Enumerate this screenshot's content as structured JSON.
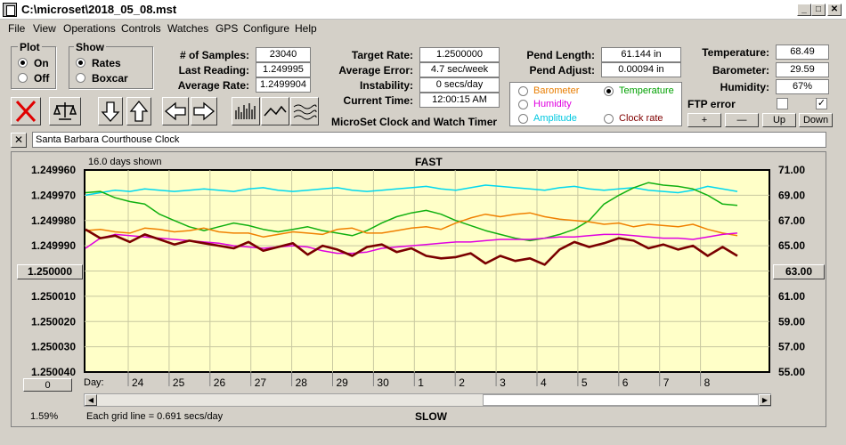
{
  "window": {
    "title": "C:\\microset\\2018_05_08.mst",
    "min": "_",
    "max": "□",
    "close": "✕"
  },
  "menu": [
    "File",
    "View",
    "Operations",
    "Controls",
    "Watches",
    "GPS",
    "Configure",
    "Help"
  ],
  "plot_group": {
    "title": "Plot",
    "on": "On",
    "off": "Off",
    "selected": "On"
  },
  "show_group": {
    "title": "Show",
    "rates": "Rates",
    "boxcar": "Boxcar",
    "selected": "Rates"
  },
  "stats": {
    "samples_label": "# of Samples:",
    "samples": "23040",
    "last_label": "Last Reading:",
    "last": "1.249995",
    "avg_rate_label": "Average Rate:",
    "avg_rate": "1.2499904",
    "target_label": "Target Rate:",
    "target": "1.2500000",
    "avg_err_label": "Average Error:",
    "avg_err": "4.7 sec/week",
    "instab_label": "Instability:",
    "instab": "0 secs/day",
    "time_label": "Current Time:",
    "time": "12:00:15 AM",
    "pend_len_label": "Pend Length:",
    "pend_len": "61.144 in",
    "pend_adj_label": "Pend Adjust:",
    "pend_adj": "0.00094 in",
    "temp_label": "Temperature:",
    "temp": "68.49",
    "baro_label": "Barometer:",
    "baro": "29.59",
    "hum_label": "Humidity:",
    "hum": "67%"
  },
  "app_name": "MicroSet Clock and Watch Timer",
  "legend_opts": {
    "barometer": {
      "label": "Barometer",
      "color": "#e87d00"
    },
    "temperature": {
      "label": "Temperature",
      "color": "#00a000",
      "selected": true
    },
    "humidity": {
      "label": "Humidity",
      "color": "#e000e0"
    },
    "amplitude": {
      "label": "Amplitude",
      "color": "#00c8e0"
    },
    "clock_rate": {
      "label": "Clock rate",
      "color": "#800000"
    }
  },
  "ftp": {
    "label": "FTP error",
    "color": "#e00000"
  },
  "adjust_buttons": {
    "plus": "+",
    "minus": "—",
    "up": "Up",
    "down": "Down"
  },
  "clock_name": "Santa Barbara Courthouse Clock",
  "close_x": "✕",
  "chart_data": {
    "type": "line",
    "title": "FAST",
    "bottom_label": "SLOW",
    "days_shown": "16.0 days shown",
    "grid_note": "Each grid line = 0.691 secs/day",
    "percent": "1.59%",
    "left_axis": {
      "ticks": [
        "1.249960",
        "1.249970",
        "1.249980",
        "1.249990",
        "1.250000",
        "1.250010",
        "1.250020",
        "1.250030",
        "1.250040"
      ],
      "center_button": "1.250000",
      "bottom_button": "0"
    },
    "right_axis": {
      "ticks": [
        "71.00",
        "69.00",
        "67.00",
        "65.00",
        "63.00",
        "61.00",
        "59.00",
        "57.00",
        "55.00"
      ],
      "center_button": "63.00"
    },
    "x_label": "Day:",
    "x_ticks": [
      "24",
      "25",
      "26",
      "27",
      "28",
      "29",
      "30",
      "1",
      "2",
      "3",
      "4",
      "5",
      "6",
      "7",
      "8"
    ],
    "grid": true,
    "series": [
      {
        "name": "Amplitude",
        "color": "#00d8f0",
        "values": [
          69.0,
          69.2,
          69.4,
          69.3,
          69.5,
          69.4,
          69.3,
          69.4,
          69.5,
          69.4,
          69.3,
          69.5,
          69.6,
          69.4,
          69.3,
          69.4,
          69.5,
          69.6,
          69.4,
          69.3,
          69.4,
          69.5,
          69.6,
          69.7,
          69.5,
          69.4,
          69.6,
          69.8,
          69.7,
          69.6,
          69.5,
          69.4,
          69.6,
          69.7,
          69.5,
          69.4,
          69.5,
          69.6,
          69.4,
          69.3,
          69.2,
          69.4,
          69.7,
          69.5,
          69.3
        ]
      },
      {
        "name": "Temperature",
        "color": "#10b010",
        "values": [
          69.2,
          69.3,
          68.8,
          68.5,
          68.3,
          67.5,
          67.0,
          66.5,
          66.2,
          66.5,
          66.8,
          66.6,
          66.3,
          66.1,
          66.3,
          66.5,
          66.2,
          66.0,
          65.8,
          66.2,
          66.8,
          67.3,
          67.6,
          67.8,
          67.5,
          67.0,
          66.6,
          66.2,
          65.9,
          65.6,
          65.4,
          65.6,
          65.9,
          66.3,
          67.0,
          68.3,
          69.0,
          69.6,
          70.0,
          69.8,
          69.7,
          69.5,
          69.0,
          68.3,
          68.2
        ]
      },
      {
        "name": "Barometer",
        "color": "#f08000",
        "values": [
          66.2,
          66.3,
          66.1,
          66.0,
          66.4,
          66.3,
          66.1,
          66.2,
          66.4,
          66.1,
          66.0,
          66.0,
          65.7,
          65.9,
          66.1,
          66.0,
          65.9,
          66.3,
          66.4,
          66.0,
          66.0,
          66.2,
          66.4,
          66.5,
          66.3,
          66.8,
          67.2,
          67.5,
          67.3,
          67.5,
          67.6,
          67.3,
          67.1,
          67.0,
          66.9,
          66.7,
          66.8,
          66.5,
          66.7,
          66.6,
          66.5,
          66.7,
          66.3,
          66.0,
          65.8
        ]
      },
      {
        "name": "Humidity",
        "color": "#e000e0",
        "values": [
          64.8,
          65.6,
          65.9,
          65.8,
          65.7,
          65.6,
          65.5,
          65.4,
          65.3,
          65.2,
          65.0,
          64.9,
          64.8,
          64.9,
          65.0,
          64.9,
          64.6,
          64.4,
          64.4,
          64.5,
          64.8,
          64.9,
          65.0,
          65.1,
          65.2,
          65.3,
          65.3,
          65.4,
          65.5,
          65.5,
          65.5,
          65.6,
          65.7,
          65.7,
          65.8,
          65.9,
          65.9,
          65.8,
          65.7,
          65.6,
          65.6,
          65.5,
          65.7,
          65.9,
          66.0
        ]
      },
      {
        "name": "Clock rate",
        "color": "#7a0000",
        "values": [
          66.3,
          65.6,
          65.8,
          65.3,
          65.9,
          65.5,
          65.1,
          65.4,
          65.2,
          65.0,
          64.8,
          65.3,
          64.6,
          64.9,
          65.2,
          64.3,
          65.0,
          64.7,
          64.2,
          64.9,
          65.1,
          64.5,
          64.8,
          64.2,
          64.0,
          64.1,
          64.4,
          63.6,
          64.2,
          63.8,
          64.0,
          63.5,
          64.7,
          65.3,
          64.9,
          65.2,
          65.6,
          65.4,
          64.8,
          65.1,
          64.7,
          65.0,
          64.2,
          64.9,
          64.2
        ]
      }
    ]
  }
}
